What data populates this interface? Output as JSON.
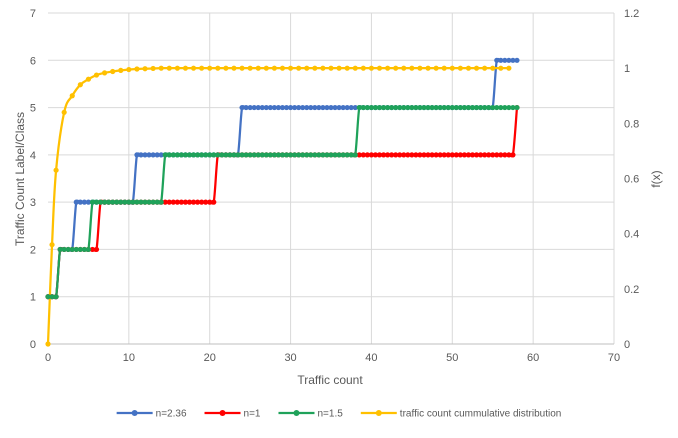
{
  "chart_data": {
    "type": "line",
    "xlabel": "Traffic count",
    "ylabel": "Traffic Count Label/Class",
    "y2label": "f(x)",
    "xlim": [
      0,
      70
    ],
    "ylim": [
      0,
      7
    ],
    "y2lim": [
      0,
      1.2
    ],
    "x_ticks": [
      0,
      10,
      20,
      30,
      40,
      50,
      60,
      70
    ],
    "y_ticks": [
      0,
      1,
      2,
      3,
      4,
      5,
      6,
      7
    ],
    "y2_ticks": [
      "0",
      "0.2",
      "0.4",
      "0.6",
      "0.8",
      "1",
      "1.2"
    ],
    "grid": true,
    "legend_position": "bottom",
    "series": [
      {
        "name": "n=2.36",
        "axis": "left",
        "color": "#4472C4",
        "x_start": 0,
        "x_end": 58,
        "x_step": 0.5,
        "steps": [
          [
            0,
            1
          ],
          [
            1.5,
            2
          ],
          [
            3.5,
            3
          ],
          [
            11,
            4
          ],
          [
            24,
            5
          ],
          [
            55.5,
            6
          ]
        ]
      },
      {
        "name": "n=1",
        "axis": "left",
        "color": "#FF0000",
        "x_start": 0,
        "x_end": 58,
        "x_step": 0.5,
        "steps": [
          [
            0,
            1
          ],
          [
            1.5,
            2
          ],
          [
            6.5,
            3
          ],
          [
            21,
            4
          ],
          [
            58,
            5
          ]
        ]
      },
      {
        "name": "n=1.5",
        "axis": "left",
        "color": "#1FA25A",
        "x_start": 0,
        "x_end": 58,
        "x_step": 0.5,
        "steps": [
          [
            0,
            1
          ],
          [
            1.5,
            2
          ],
          [
            5.5,
            3
          ],
          [
            14.5,
            4
          ],
          [
            38.5,
            5
          ]
        ]
      },
      {
        "name": "traffic count cummulative distribution",
        "axis": "right",
        "color": "#FFC000",
        "x": [
          0,
          0.5,
          1,
          2,
          3,
          4,
          5,
          6,
          7,
          8,
          9,
          10,
          11,
          12,
          13,
          14,
          15,
          16,
          17,
          18,
          19,
          20,
          21,
          22,
          23,
          24,
          25,
          26,
          27,
          28,
          29,
          30,
          31,
          32,
          33,
          34,
          35,
          36,
          37,
          38,
          39,
          40,
          41,
          42,
          43,
          44,
          45,
          46,
          47,
          48,
          49,
          50,
          51,
          52,
          53,
          54,
          55,
          56,
          57
        ],
        "y": [
          0,
          0.36,
          0.63,
          0.84,
          0.9,
          0.94,
          0.96,
          0.975,
          0.983,
          0.988,
          0.992,
          0.995,
          0.997,
          0.998,
          0.999,
          1,
          1,
          1,
          1,
          1,
          1,
          1,
          1,
          1,
          1,
          1,
          1,
          1,
          1,
          1,
          1,
          1,
          1,
          1,
          1,
          1,
          1,
          1,
          1,
          1,
          1,
          1,
          1,
          1,
          1,
          1,
          1,
          1,
          1,
          1,
          1,
          1,
          1,
          1,
          1,
          1,
          1,
          1,
          1
        ]
      }
    ]
  }
}
